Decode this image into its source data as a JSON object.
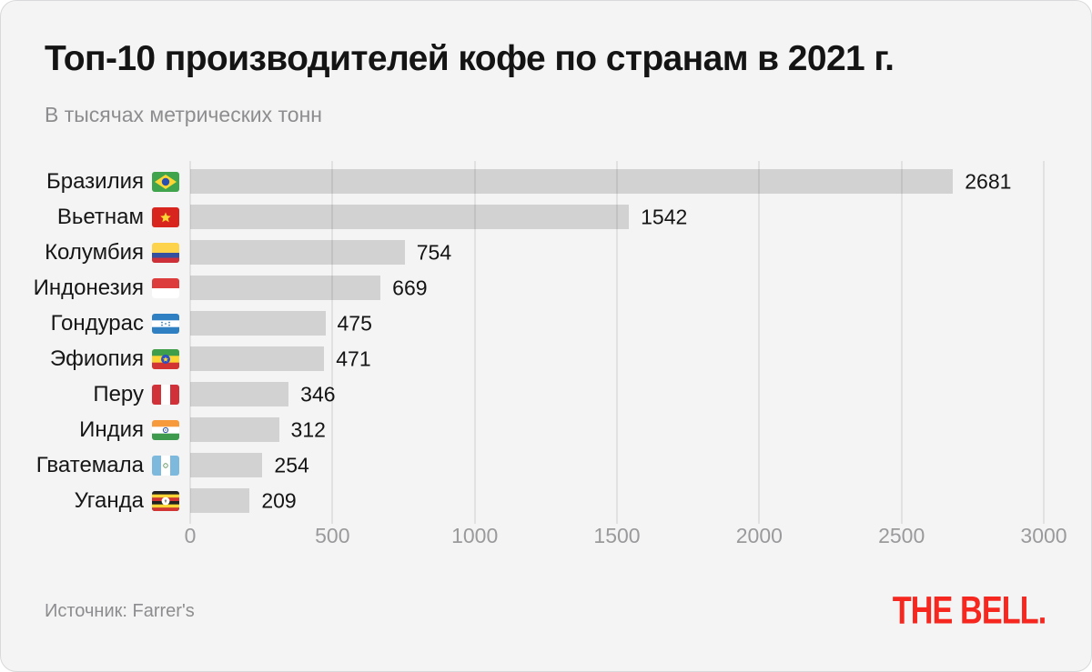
{
  "header": {
    "title": "Топ-10 производителей кофе по странам в 2021 г.",
    "subtitle": "В тысячах метрических тонн"
  },
  "footer": {
    "source": "Источник: Farrer's",
    "brand": "THE BELL."
  },
  "colors": {
    "card_background": "#f4f4f5",
    "bar": "#d2d2d2",
    "brand_red": "#f5271f",
    "text_primary": "#141414",
    "text_secondary": "#8d8d8f",
    "axis_text": "#9a9a9c"
  },
  "chart_data": {
    "type": "bar",
    "orientation": "horizontal",
    "title": "Топ-10 производителей кофе по странам в 2021 г.",
    "units": "В тысячах метрических тонн",
    "categories": [
      "Бразилия",
      "Вьетнам",
      "Колумбия",
      "Индонезия",
      "Гондурас",
      "Эфиопия",
      "Перу",
      "Индия",
      "Гватемала",
      "Уганда"
    ],
    "values": [
      2681,
      1542,
      754,
      669,
      475,
      471,
      346,
      312,
      254,
      209
    ],
    "flag_icons": [
      "brazil-flag-icon",
      "vietnam-flag-icon",
      "colombia-flag-icon",
      "indonesia-flag-icon",
      "honduras-flag-icon",
      "ethiopia-flag-icon",
      "peru-flag-icon",
      "india-flag-icon",
      "guatemala-flag-icon",
      "uganda-flag-icon"
    ],
    "value_label_position": "right-of-bar",
    "xlabel": "",
    "ylabel": "",
    "xlim": [
      0,
      3000
    ],
    "xticks": [
      0,
      500,
      1000,
      1500,
      2000,
      2500,
      3000
    ],
    "grid": "vertical",
    "legend": "none"
  }
}
